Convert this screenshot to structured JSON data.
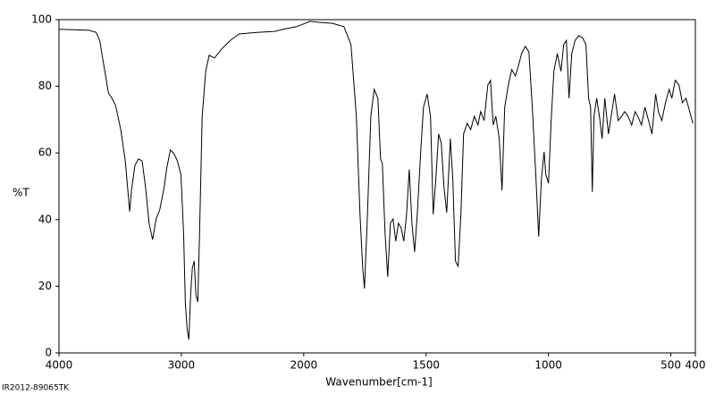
{
  "chart_data": {
    "type": "line",
    "ylabel": "%T",
    "xlabel": "Wavenumber[cm-1]",
    "sample_code": "IR2012-89065TK",
    "color": "#000000",
    "xlim": [
      4000,
      400
    ],
    "ylim": [
      0,
      100
    ],
    "xticks": [
      4000,
      3000,
      2000,
      1500,
      1000,
      500,
      400
    ],
    "yticks": [
      0,
      20,
      40,
      60,
      80,
      100
    ],
    "x": [
      4000,
      3755,
      3697,
      3668,
      3625,
      3596,
      3567,
      3538,
      3495,
      3458,
      3422,
      3408,
      3379,
      3350,
      3321,
      3292,
      3264,
      3235,
      3206,
      3177,
      3141,
      3119,
      3090,
      3061,
      3032,
      3004,
      2982,
      2967,
      2953,
      2939,
      2924,
      2910,
      2895,
      2881,
      2866,
      2852,
      2830,
      2801,
      2773,
      2729,
      2671,
      2599,
      2527,
      2383,
      2238,
      2166,
      2058,
      1974,
      1938,
      1883,
      1836,
      1807,
      1785,
      1770,
      1759,
      1752,
      1741,
      1726,
      1712,
      1697,
      1686,
      1679,
      1668,
      1657,
      1646,
      1635,
      1624,
      1613,
      1602,
      1591,
      1580,
      1569,
      1558,
      1547,
      1536,
      1522,
      1511,
      1496,
      1482,
      1471,
      1460,
      1449,
      1438,
      1427,
      1416,
      1401,
      1391,
      1380,
      1369,
      1358,
      1347,
      1332,
      1318,
      1303,
      1288,
      1277,
      1263,
      1248,
      1237,
      1226,
      1215,
      1201,
      1190,
      1179,
      1164,
      1150,
      1135,
      1124,
      1110,
      1095,
      1080,
      1066,
      1051,
      1040,
      1029,
      1018,
      1011,
      1000,
      989,
      978,
      964,
      949,
      938,
      927,
      916,
      905,
      891,
      876,
      861,
      847,
      836,
      828,
      821,
      814,
      803,
      792,
      781,
      770,
      755,
      741,
      730,
      715,
      701,
      689,
      675,
      660,
      646,
      635,
      620,
      606,
      591,
      577,
      562,
      551,
      537,
      522,
      507,
      496,
      482,
      467,
      453,
      438,
      410
    ],
    "values": [
      97.1,
      96.8,
      96.2,
      93.8,
      84.5,
      78.0,
      76.4,
      74.3,
      67.0,
      57.6,
      42.4,
      48.8,
      56.3,
      58.2,
      57.6,
      49.6,
      38.9,
      34.0,
      40.2,
      42.9,
      49.6,
      55.5,
      60.9,
      59.8,
      57.6,
      53.6,
      36.2,
      14.7,
      7.2,
      4.0,
      17.4,
      25.5,
      27.6,
      17.4,
      15.3,
      34.9,
      71.0,
      84.5,
      89.3,
      88.5,
      91.2,
      93.8,
      95.7,
      96.2,
      96.5,
      97.1,
      97.9,
      99.5,
      99.2,
      98.9,
      97.9,
      92.5,
      71.0,
      41.6,
      25.5,
      19.3,
      38.9,
      71.0,
      79.1,
      76.4,
      58.2,
      56.8,
      36.2,
      22.8,
      38.9,
      40.2,
      33.5,
      38.9,
      37.5,
      33.5,
      41.6,
      55.0,
      38.9,
      30.3,
      41.6,
      60.3,
      73.7,
      77.7,
      71.0,
      41.6,
      52.3,
      65.7,
      63.0,
      49.6,
      42.1,
      64.3,
      52.3,
      27.6,
      26.0,
      41.6,
      65.7,
      68.9,
      67.0,
      71.0,
      68.4,
      72.4,
      69.7,
      80.4,
      81.8,
      68.4,
      71.0,
      64.3,
      48.8,
      73.7,
      80.4,
      85.0,
      83.1,
      85.8,
      89.8,
      92.0,
      90.3,
      73.7,
      52.3,
      34.9,
      52.3,
      60.3,
      53.6,
      50.9,
      69.7,
      84.5,
      89.8,
      84.5,
      92.5,
      93.8,
      76.4,
      89.8,
      93.8,
      95.2,
      94.6,
      92.5,
      76.4,
      73.7,
      48.3,
      71.0,
      76.4,
      71.0,
      64.3,
      76.4,
      65.7,
      72.4,
      77.7,
      69.7,
      71.0,
      72.4,
      71.0,
      68.4,
      72.4,
      71.0,
      68.4,
      73.7,
      69.7,
      65.7,
      77.7,
      72.4,
      69.7,
      75.1,
      79.1,
      76.4,
      81.8,
      80.4,
      75.1,
      76.4,
      68.9
    ]
  }
}
